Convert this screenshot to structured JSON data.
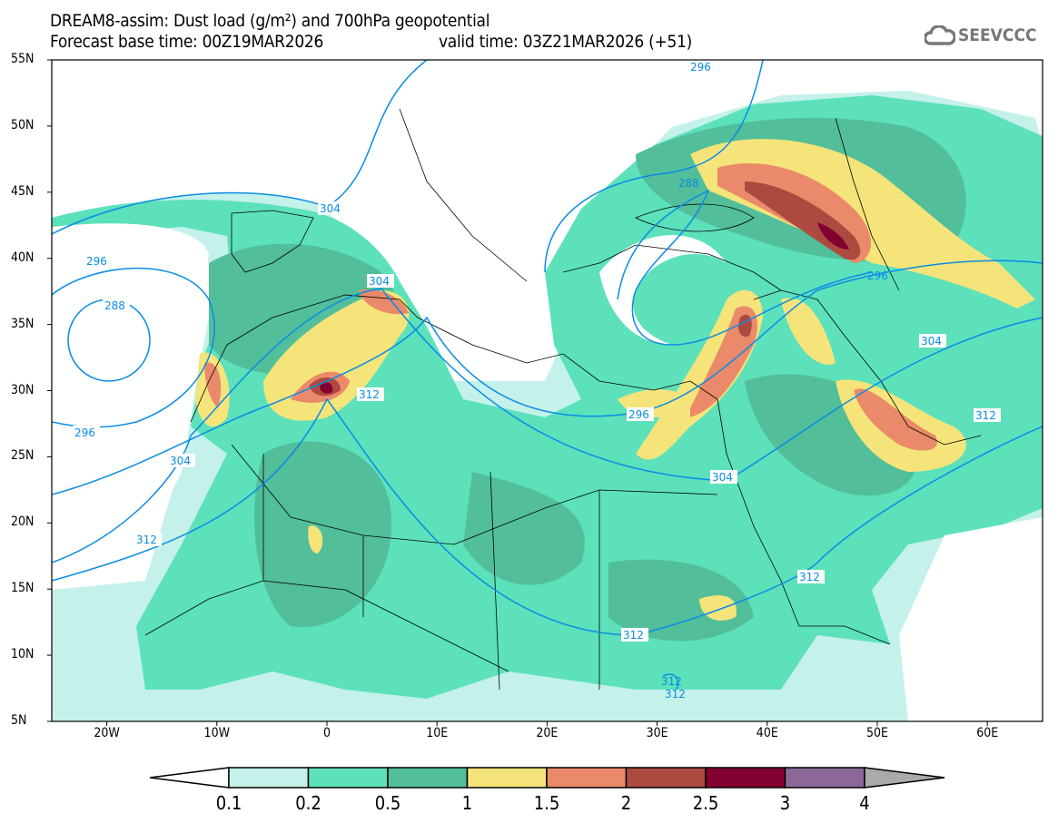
{
  "title": {
    "line1": "DREAM8-assim: Dust load (g/m²) and 700hPa geopotential",
    "base_time": "Forecast base time: 00Z19MAR2026",
    "valid_time": "valid time: 03Z21MAR2026 (+51)"
  },
  "logo": {
    "text": "SEEVCCC",
    "icon": "cloud-icon"
  },
  "axes": {
    "lat_labels": [
      "55N",
      "50N",
      "45N",
      "40N",
      "35N",
      "30N",
      "25N",
      "20N",
      "15N",
      "10N",
      "5N"
    ],
    "lon_labels": [
      "20W",
      "10W",
      "0",
      "10E",
      "20E",
      "30E",
      "40E",
      "50E",
      "60E"
    ]
  },
  "contour_labels": [
    "296",
    "304",
    "288",
    "296",
    "304",
    "312",
    "304",
    "312",
    "296",
    "296",
    "304",
    "304",
    "312",
    "312",
    "312",
    "312",
    "312"
  ],
  "colorbar": {
    "ticks": [
      "0.1",
      "0.2",
      "0.5",
      "1",
      "1.5",
      "2",
      "2.5",
      "3",
      "4"
    ],
    "colors": [
      "#ffffff",
      "#c4f1ea",
      "#5ce1bb",
      "#52be9a",
      "#f5e47a",
      "#ea8a6a",
      "#ad4a40",
      "#820030",
      "#8c6898",
      "#aaaaaa"
    ]
  }
}
